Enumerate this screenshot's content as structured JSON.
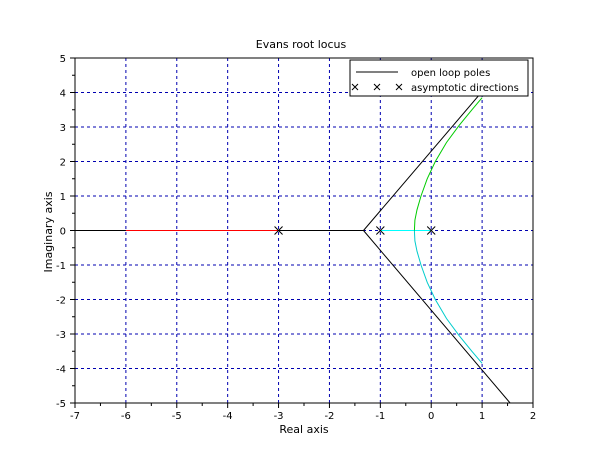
{
  "chart_data": {
    "type": "line",
    "title": "Evans root locus",
    "xlabel": "Real axis",
    "ylabel": "Imaginary axis",
    "xlim": [
      -7,
      2
    ],
    "ylim": [
      -5,
      5
    ],
    "xticks": [
      -7,
      -6,
      -5,
      -4,
      -3,
      -2,
      -1,
      0,
      1,
      2
    ],
    "yticks": [
      -5,
      -4,
      -3,
      -2,
      -1,
      0,
      1,
      2,
      3,
      4,
      5
    ],
    "grid": true,
    "grid_style": "dashed",
    "legend_position": "top-right",
    "legend": [
      {
        "label": "open loop poles",
        "marker": "line",
        "color": "#000000"
      },
      {
        "label": "asymptotic directions",
        "marker": "xxx",
        "color": "#000000"
      }
    ],
    "series": [
      {
        "color": "#000000",
        "x": [
          -7,
          -3
        ],
        "y": [
          0,
          0
        ]
      },
      {
        "color": "#ff0000",
        "x": [
          -6.0,
          -3.0
        ],
        "y": [
          0,
          0
        ]
      },
      {
        "color": "#000000",
        "x": [
          -3.0,
          -1.33
        ],
        "y": [
          0,
          0
        ]
      },
      {
        "color": "#00ffff",
        "x": [
          -1.0,
          -0.8,
          -0.6,
          -0.45,
          -0.33
        ],
        "y": [
          0,
          0,
          0,
          0,
          0
        ]
      },
      {
        "color": "#00ffff",
        "x": [
          0.0,
          -0.33
        ],
        "y": [
          0,
          0
        ]
      },
      {
        "color": "#00cc00",
        "x": [
          -0.33,
          -0.32,
          -0.28,
          -0.2,
          -0.08,
          0.08,
          0.3,
          0.55,
          0.8,
          1.0
        ],
        "y": [
          0,
          0.3,
          0.6,
          1.0,
          1.5,
          2.0,
          2.55,
          3.05,
          3.5,
          3.85
        ]
      },
      {
        "color": "#00cccc",
        "x": [
          -0.33,
          -0.32,
          -0.28,
          -0.2,
          -0.08,
          0.08,
          0.3,
          0.55,
          0.8,
          1.0
        ],
        "y": [
          0,
          -0.3,
          -0.6,
          -1.0,
          -1.5,
          -2.0,
          -2.55,
          -3.05,
          -3.5,
          -3.85
        ]
      },
      {
        "color": "#000000",
        "x": [
          -1.33,
          1.1
        ],
        "y": [
          0,
          4.2
        ]
      },
      {
        "color": "#000000",
        "x": [
          -1.33,
          1.55
        ],
        "y": [
          0,
          -5.0
        ]
      }
    ],
    "poles": [
      {
        "x": -3,
        "y": 0
      },
      {
        "x": -1,
        "y": 0
      },
      {
        "x": 0,
        "y": 0
      }
    ]
  }
}
